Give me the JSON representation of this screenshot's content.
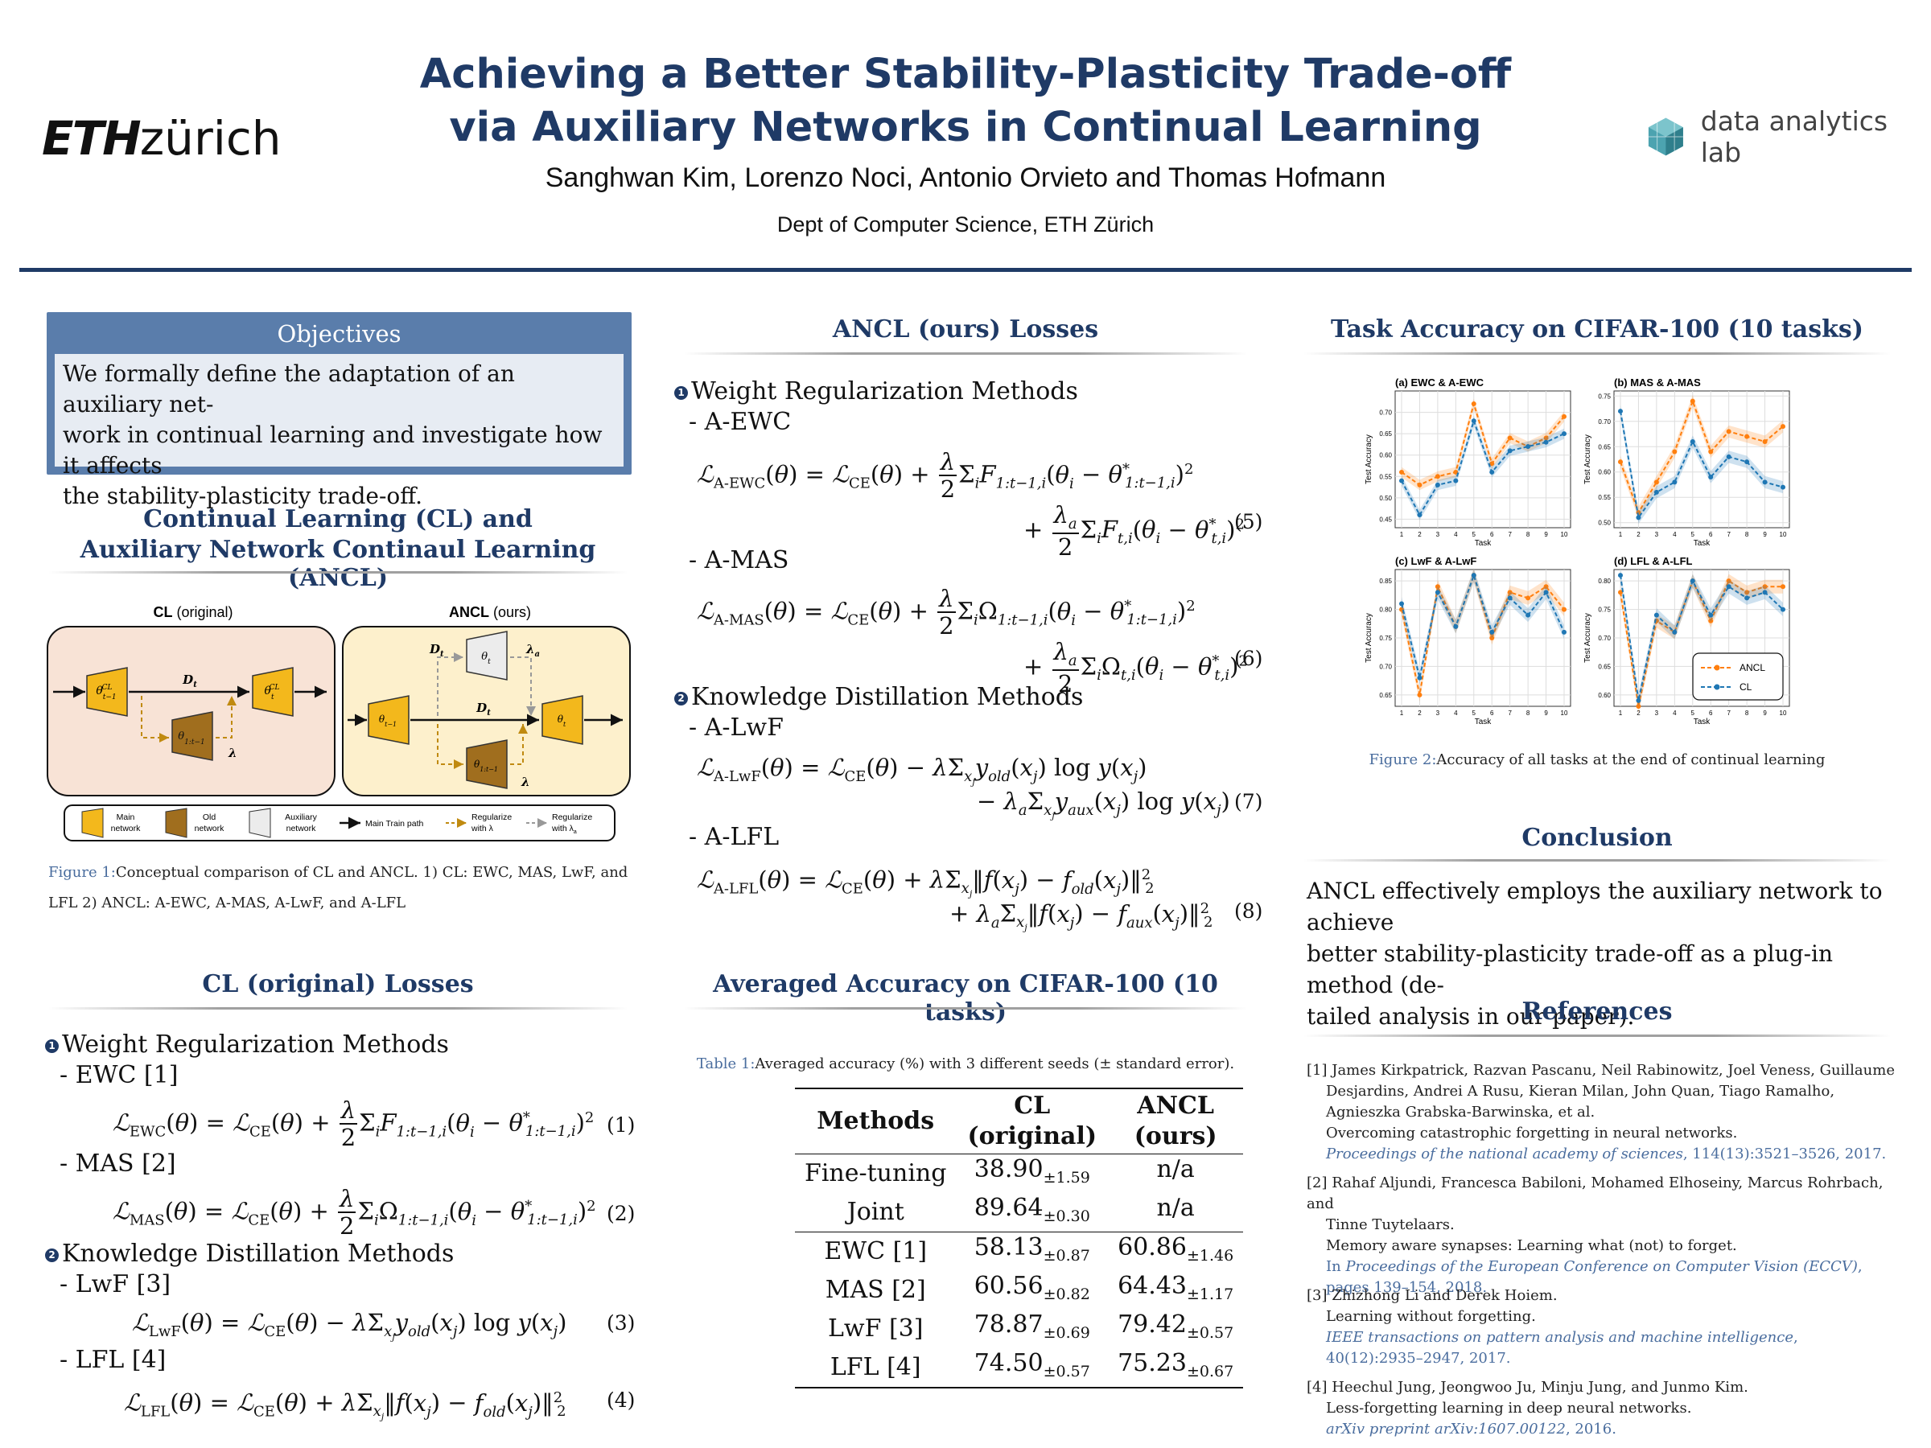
{
  "header": {
    "title_line1": "Achieving a Better Stability-Plasticity Trade-off",
    "title_line2": "via Auxiliary Networks in Continual Learning",
    "authors": "Sanghwan Kim, Lorenzo Noci, Antonio Orvieto and Thomas Hofmann",
    "affiliation": "Dept of Computer Science, ETH Zürich",
    "logo_left_bold": "ETH",
    "logo_left_rest": "zürich",
    "logo_right": "data analytics lab"
  },
  "objectives": {
    "heading": "Objectives",
    "line1": "We formally define the adaptation of an auxiliary net-",
    "line2": "work in continual learning and investigate how it affects",
    "line3": "the stability-plasticity trade-off."
  },
  "cl_anc": {
    "heading_line1": "Continual Learning (CL) and",
    "heading_line2": "Auxiliary Network Continaul Learning (ANCL)",
    "panel_left_bold": "CL",
    "panel_left_rest": " (original)",
    "panel_right_bold": "ANCL",
    "panel_right_rest": " (ours)",
    "legend": {
      "main": "Main network",
      "old": "Old network",
      "aux": "Auxiliary network",
      "main_path": "Main Train path",
      "reg_lambda": "Regularize with λ",
      "reg_lambda_a": "Regularize with λa"
    },
    "figure_label": "Figure 1:",
    "caption_line1": "Conceptual comparison of CL and ANCL. 1) CL: EWC, MAS, LwF, and",
    "caption_line2": "LFL 2) ANCL: A-EWC, A-MAS, A-LwF, and A-LFL"
  },
  "cl_losses": {
    "heading": "CL (original) Losses",
    "group1": "Weight Regularization Methods",
    "ewc": "- EWC [1]",
    "mas": "- MAS [2]",
    "group2": "Knowledge Distillation Methods",
    "lwf": "- LwF [3]",
    "lfl": "- LFL [4]",
    "eq1": "(1)",
    "eq2": "(2)",
    "eq3": "(3)",
    "eq4": "(4)",
    "n1": "1",
    "n2": "2"
  },
  "ancl_losses": {
    "heading": "ANCL (ours) Losses",
    "group1": "Weight Regularization Methods",
    "aewc": "- A-EWC",
    "amas": "- A-MAS",
    "group2": "Knowledge Distillation Methods",
    "alwf": "- A-LwF",
    "alfl": "- A-LFL",
    "eq5": "(5)",
    "eq6": "(6)",
    "eq7": "(7)",
    "eq8": "(8)",
    "n1": "1",
    "n2": "2"
  },
  "avg_acc": {
    "heading": "Averaged Accuracy on CIFAR-100 (10 tasks)",
    "table_label": "Table 1:",
    "caption": "Averaged accuracy (%) with 3 different seeds (± standard error).",
    "col_methods": "Methods",
    "col_cl_1": "CL",
    "col_cl_2": "(original)",
    "col_ancl_1": "ANCL",
    "col_ancl_2": "(ours)",
    "rows": [
      {
        "method": "Fine-tuning",
        "cl": "38.90",
        "cl_se": "±1.59",
        "ancl": "n/a",
        "ancl_se": ""
      },
      {
        "method": "Joint",
        "cl": "89.64",
        "cl_se": "±0.30",
        "ancl": "n/a",
        "ancl_se": ""
      },
      {
        "method": "EWC [1]",
        "cl": "58.13",
        "cl_se": "±0.87",
        "ancl": "60.86",
        "ancl_se": "±1.46"
      },
      {
        "method": "MAS [2]",
        "cl": "60.56",
        "cl_se": "±0.82",
        "ancl": "64.43",
        "ancl_se": "±1.17"
      },
      {
        "method": "LwF [3]",
        "cl": "78.87",
        "cl_se": "±0.69",
        "ancl": "79.42",
        "ancl_se": "±0.57"
      },
      {
        "method": "LFL [4]",
        "cl": "74.50",
        "cl_se": "±0.57",
        "ancl": "75.23",
        "ancl_se": "±0.67"
      }
    ]
  },
  "task_acc": {
    "heading": "Task Accuracy on CIFAR-100 (10 tasks)",
    "figure_label": "Figure 2:",
    "caption": "Accuracy of all tasks at the end of continual learning"
  },
  "conclusion": {
    "heading": "Conclusion",
    "line1": "ANCL effectively employs the auxiliary network to achieve",
    "line2": "better stability-plasticity trade-off as a plug-in method (de-",
    "line3": "tailed analysis in our paper)."
  },
  "references": {
    "heading": "References",
    "items": [
      {
        "num": "[1]",
        "authors_l1": "James Kirkpatrick, Razvan Pascanu, Neil Rabinowitz, Joel Veness, Guillaume",
        "authors_l2": "Desjardins, Andrei A Rusu, Kieran Milan, John Quan, Tiago Ramalho,",
        "authors_l3": "Agnieszka Grabska-Barwinska, et al.",
        "title": "Overcoming catastrophic forgetting in neural networks.",
        "venue": "Proceedings of the national academy of sciences",
        "detail": ", 114(13):3521–3526, 2017."
      },
      {
        "num": "[2]",
        "authors_l1": "Rahaf Aljundi, Francesca Babiloni, Mohamed Elhoseiny, Marcus Rohrbach, and",
        "authors_l2": "Tinne Tuytelaars.",
        "title": "Memory aware synapses: Learning what (not) to forget.",
        "venue_pre": "In ",
        "venue": "Proceedings of the European Conference on Computer Vision (ECCV)",
        "detail": ",",
        "detail2": "pages 139–154, 2018."
      },
      {
        "num": "[3]",
        "authors_l1": "Zhizhong Li and Derek Hoiem.",
        "title": "Learning without forgetting.",
        "venue": "IEEE transactions on pattern analysis and machine intelligence",
        "detail": ",",
        "detail2": "40(12):2935–2947, 2017."
      },
      {
        "num": "[4]",
        "authors_l1": "Heechul Jung, Jeongwoo Ju, Minju Jung, and Junmo Kim.",
        "title": "Less-forgetting learning in deep neural networks.",
        "venue": "arXiv preprint arXiv:1607.00122",
        "detail": ", 2016."
      }
    ]
  },
  "chart_data": [
    {
      "type": "line",
      "title": "(a) EWC & A-EWC",
      "xlabel": "Task",
      "ylabel": "Test Accuracy",
      "x": [
        1,
        2,
        3,
        4,
        5,
        6,
        7,
        8,
        9,
        10
      ],
      "ylim": [
        0.43,
        0.75
      ],
      "yticks": [
        0.45,
        0.5,
        0.55,
        0.6,
        0.65,
        0.7
      ],
      "ytick_labels": [
        "0.45",
        "0.50",
        "0.55",
        "0.60",
        "0.65",
        "0.70"
      ],
      "series": [
        {
          "name": "ANCL",
          "color": "#ff7f0e",
          "values": [
            0.56,
            0.53,
            0.55,
            0.56,
            0.72,
            0.58,
            0.64,
            0.62,
            0.64,
            0.69
          ]
        },
        {
          "name": "CL",
          "color": "#1f77b4",
          "values": [
            0.54,
            0.46,
            0.53,
            0.54,
            0.68,
            0.56,
            0.61,
            0.62,
            0.63,
            0.65
          ]
        }
      ]
    },
    {
      "type": "line",
      "title": "(b) MAS & A-MAS",
      "xlabel": "Task",
      "ylabel": "Test Accuracy",
      "x": [
        1,
        2,
        3,
        4,
        5,
        6,
        7,
        8,
        9,
        10
      ],
      "ylim": [
        0.49,
        0.76
      ],
      "yticks": [
        0.5,
        0.55,
        0.6,
        0.65,
        0.7,
        0.75
      ],
      "ytick_labels": [
        "0.50",
        "0.55",
        "0.60",
        "0.65",
        "0.70",
        "0.75"
      ],
      "series": [
        {
          "name": "ANCL",
          "color": "#ff7f0e",
          "values": [
            0.62,
            0.52,
            0.58,
            0.64,
            0.74,
            0.64,
            0.68,
            0.67,
            0.66,
            0.69
          ]
        },
        {
          "name": "CL",
          "color": "#1f77b4",
          "values": [
            0.72,
            0.51,
            0.56,
            0.58,
            0.66,
            0.59,
            0.63,
            0.62,
            0.58,
            0.57
          ]
        }
      ]
    },
    {
      "type": "line",
      "title": "(c) LwF & A-LwF",
      "xlabel": "Task",
      "ylabel": "Test Accuracy",
      "x": [
        1,
        2,
        3,
        4,
        5,
        6,
        7,
        8,
        9,
        10
      ],
      "ylim": [
        0.63,
        0.87
      ],
      "yticks": [
        0.65,
        0.7,
        0.75,
        0.8,
        0.85
      ],
      "ytick_labels": [
        "0.65",
        "0.70",
        "0.75",
        "0.80",
        "0.85"
      ],
      "series": [
        {
          "name": "ANCL",
          "color": "#ff7f0e",
          "values": [
            0.8,
            0.65,
            0.84,
            0.77,
            0.86,
            0.75,
            0.83,
            0.82,
            0.84,
            0.8
          ]
        },
        {
          "name": "CL",
          "color": "#1f77b4",
          "values": [
            0.81,
            0.68,
            0.83,
            0.77,
            0.86,
            0.76,
            0.82,
            0.79,
            0.83,
            0.76
          ]
        }
      ]
    },
    {
      "type": "line",
      "title": "(d) LFL & A-LFL",
      "xlabel": "Task",
      "ylabel": "Test Accuracy",
      "x": [
        1,
        2,
        3,
        4,
        5,
        6,
        7,
        8,
        9,
        10
      ],
      "ylim": [
        0.58,
        0.82
      ],
      "yticks": [
        0.6,
        0.65,
        0.7,
        0.75,
        0.8
      ],
      "ytick_labels": [
        "0.60",
        "0.65",
        "0.70",
        "0.75",
        "0.80"
      ],
      "legend": "bottom-right",
      "series": [
        {
          "name": "ANCL",
          "color": "#ff7f0e",
          "values": [
            0.78,
            0.58,
            0.73,
            0.71,
            0.8,
            0.73,
            0.8,
            0.78,
            0.79,
            0.79
          ]
        },
        {
          "name": "CL",
          "color": "#1f77b4",
          "values": [
            0.81,
            0.59,
            0.74,
            0.71,
            0.8,
            0.74,
            0.79,
            0.77,
            0.78,
            0.75
          ]
        }
      ]
    }
  ]
}
